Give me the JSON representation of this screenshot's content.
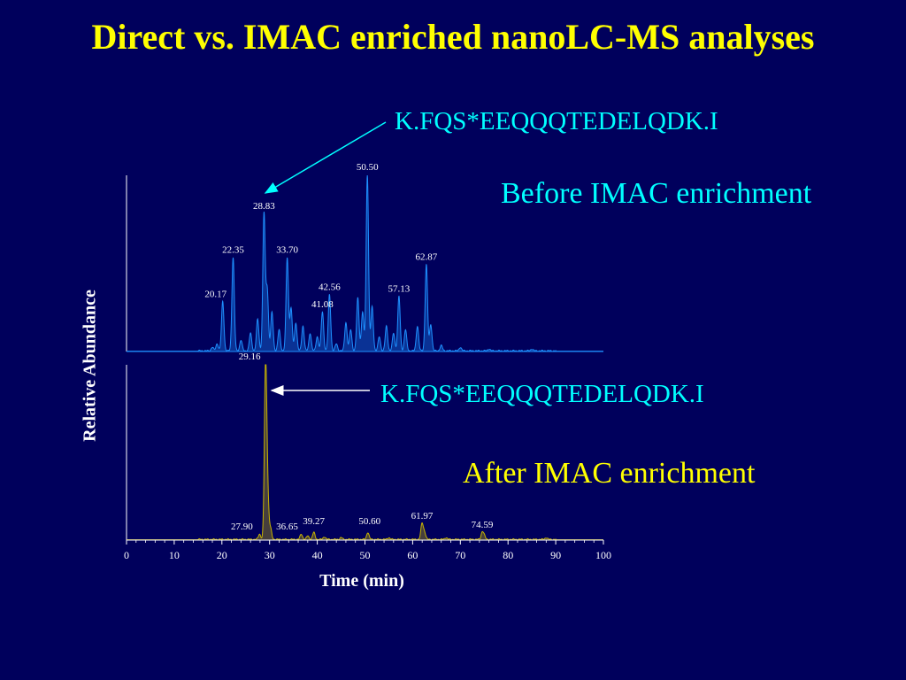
{
  "slide": {
    "title": "Direct vs. IMAC enriched nanoLC-MS analyses"
  },
  "annotations": {
    "peptide_top": "K.FQS*EEQQQTEDELQDK.I",
    "peptide_bottom": "K.FQS*EEQQQTEDELQDK.I",
    "before_caption": "Before IMAC enrichment",
    "after_caption": "After IMAC enrichment"
  },
  "colors": {
    "background": "#00005c",
    "title": "#ffff00",
    "before_trace": "#1e90ff",
    "after_trace": "#c8b400",
    "annotation": "#00ffff",
    "axis": "#ffffff"
  },
  "chart_data": [
    {
      "type": "line",
      "panel": "before",
      "xlabel": "Time (min)",
      "ylabel": "Relative Abundance",
      "xlim": [
        0,
        100
      ],
      "ylim": [
        0,
        100
      ],
      "peaks": [
        {
          "x": 20.17,
          "y": 28,
          "label": "20.17"
        },
        {
          "x": 22.35,
          "y": 53,
          "label": "22.35"
        },
        {
          "x": 28.83,
          "y": 78,
          "label": "28.83"
        },
        {
          "x": 33.7,
          "y": 53,
          "label": "33.70"
        },
        {
          "x": 41.08,
          "y": 22,
          "label": "41.08"
        },
        {
          "x": 42.56,
          "y": 32,
          "label": "42.56"
        },
        {
          "x": 50.5,
          "y": 100,
          "label": "50.50"
        },
        {
          "x": 57.13,
          "y": 31,
          "label": "57.13"
        },
        {
          "x": 62.87,
          "y": 49,
          "label": "62.87"
        }
      ],
      "minor_peaks": [
        {
          "x": 18.0,
          "y": 2
        },
        {
          "x": 19.0,
          "y": 4
        },
        {
          "x": 24.0,
          "y": 6
        },
        {
          "x": 26.0,
          "y": 10
        },
        {
          "x": 27.5,
          "y": 18
        },
        {
          "x": 29.5,
          "y": 35
        },
        {
          "x": 30.5,
          "y": 22
        },
        {
          "x": 32.0,
          "y": 12
        },
        {
          "x": 34.5,
          "y": 24
        },
        {
          "x": 35.5,
          "y": 16
        },
        {
          "x": 37.0,
          "y": 14
        },
        {
          "x": 38.5,
          "y": 10
        },
        {
          "x": 40.0,
          "y": 8
        },
        {
          "x": 44.0,
          "y": 4
        },
        {
          "x": 46.0,
          "y": 16
        },
        {
          "x": 47.0,
          "y": 12
        },
        {
          "x": 48.5,
          "y": 30
        },
        {
          "x": 49.5,
          "y": 22
        },
        {
          "x": 51.5,
          "y": 25
        },
        {
          "x": 53.0,
          "y": 8
        },
        {
          "x": 54.5,
          "y": 14
        },
        {
          "x": 56.0,
          "y": 10
        },
        {
          "x": 58.5,
          "y": 12
        },
        {
          "x": 61.0,
          "y": 14
        },
        {
          "x": 63.8,
          "y": 15
        },
        {
          "x": 66.0,
          "y": 3
        },
        {
          "x": 70.0,
          "y": 2
        },
        {
          "x": 76.0,
          "y": 1
        },
        {
          "x": 85.0,
          "y": 1
        }
      ]
    },
    {
      "type": "line",
      "panel": "after",
      "xlabel": "Time (min)",
      "ylabel": "Relative Abundance",
      "xlim": [
        0,
        100
      ],
      "ylim": [
        0,
        100
      ],
      "xticks": [
        0,
        10,
        20,
        30,
        40,
        50,
        60,
        70,
        80,
        90,
        100
      ],
      "peaks": [
        {
          "x": 27.9,
          "y": 3,
          "label": "27.90"
        },
        {
          "x": 29.16,
          "y": 100,
          "label": "29.16"
        },
        {
          "x": 36.65,
          "y": 3,
          "label": "36.65"
        },
        {
          "x": 39.27,
          "y": 4,
          "label": "39.27"
        },
        {
          "x": 50.6,
          "y": 4,
          "label": "50.60"
        },
        {
          "x": 61.97,
          "y": 9,
          "label": "61.97"
        },
        {
          "x": 74.59,
          "y": 4,
          "label": "74.59"
        }
      ],
      "minor_peaks": [
        {
          "x": 29.6,
          "y": 22
        },
        {
          "x": 30.2,
          "y": 6
        },
        {
          "x": 38.0,
          "y": 2
        },
        {
          "x": 41.5,
          "y": 1.5
        },
        {
          "x": 45.0,
          "y": 1
        },
        {
          "x": 55.0,
          "y": 1
        },
        {
          "x": 62.5,
          "y": 4
        },
        {
          "x": 67.0,
          "y": 1
        },
        {
          "x": 75.0,
          "y": 2
        },
        {
          "x": 88.0,
          "y": 1
        }
      ]
    }
  ]
}
